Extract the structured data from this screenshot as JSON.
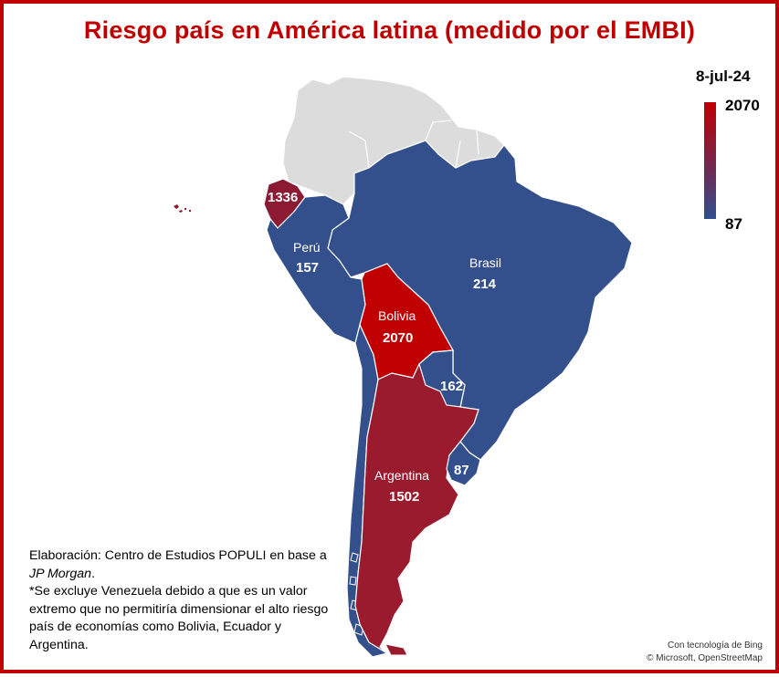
{
  "title": "Riesgo país en América latina (medido por el EMBI)",
  "legend": {
    "date": "8-jul-24",
    "max": "2070",
    "min": "87",
    "max_color": "#c00000",
    "min_color": "#2f4f8f"
  },
  "countries": [
    {
      "name": "",
      "value": "1336",
      "color": "#8b1a32"
    },
    {
      "name": "Perú",
      "value": "157",
      "color": "#34508c"
    },
    {
      "name": "Brasil",
      "value": "214",
      "color": "#34508c"
    },
    {
      "name": "Bolivia",
      "value": "2070",
      "color": "#c00000"
    },
    {
      "name": "",
      "value": "162",
      "color": "#34508c"
    },
    {
      "name": "Argentina",
      "value": "1502",
      "color": "#9b1b2e"
    },
    {
      "name": "",
      "value": "87",
      "color": "#34508c"
    }
  ],
  "note": {
    "line1_prefix": "Elaboración: Centro de Estudios POPULI en base a ",
    "line1_italic": "JP Morgan",
    "line1_suffix": ".",
    "line2": "*Se excluye Venezuela debido a que es un valor extremo que no permitiría dimensionar el alto riesgo país de economías como Bolivia, Ecuador y Argentina."
  },
  "credit": {
    "line1": "Con tecnología de Bing",
    "line2": "© Microsoft, OpenStreetMap"
  }
}
